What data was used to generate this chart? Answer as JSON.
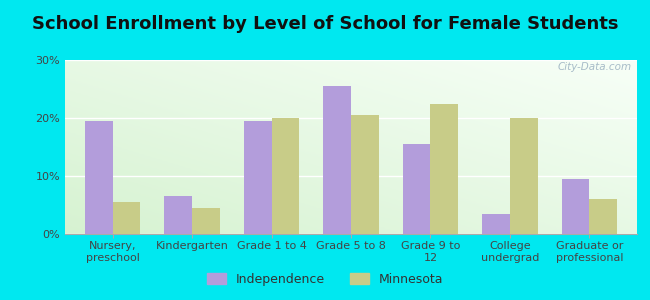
{
  "title": "School Enrollment by Level of School for Female Students",
  "categories": [
    "Nursery,\npreschool",
    "Kindergarten",
    "Grade 1 to 4",
    "Grade 5 to 8",
    "Grade 9 to\n12",
    "College\nundergrad",
    "Graduate or\nprofessional"
  ],
  "independence": [
    19.5,
    6.5,
    19.5,
    25.5,
    15.5,
    3.5,
    9.5
  ],
  "minnesota": [
    5.5,
    4.5,
    20.0,
    20.5,
    22.5,
    20.0,
    6.0
  ],
  "independence_color": "#b39ddb",
  "minnesota_color": "#c8cc88",
  "background_outer": "#00e8f0",
  "background_inner_top": "#e8f5e0",
  "background_inner_bottom": "#f8fdf0",
  "ylim": [
    0,
    30
  ],
  "yticks": [
    0,
    10,
    20,
    30
  ],
  "ytick_labels": [
    "0%",
    "10%",
    "20%",
    "30%"
  ],
  "legend_labels": [
    "Independence",
    "Minnesota"
  ],
  "bar_width": 0.35,
  "title_fontsize": 13,
  "tick_fontsize": 8,
  "legend_fontsize": 9,
  "watermark": "City-Data.com"
}
